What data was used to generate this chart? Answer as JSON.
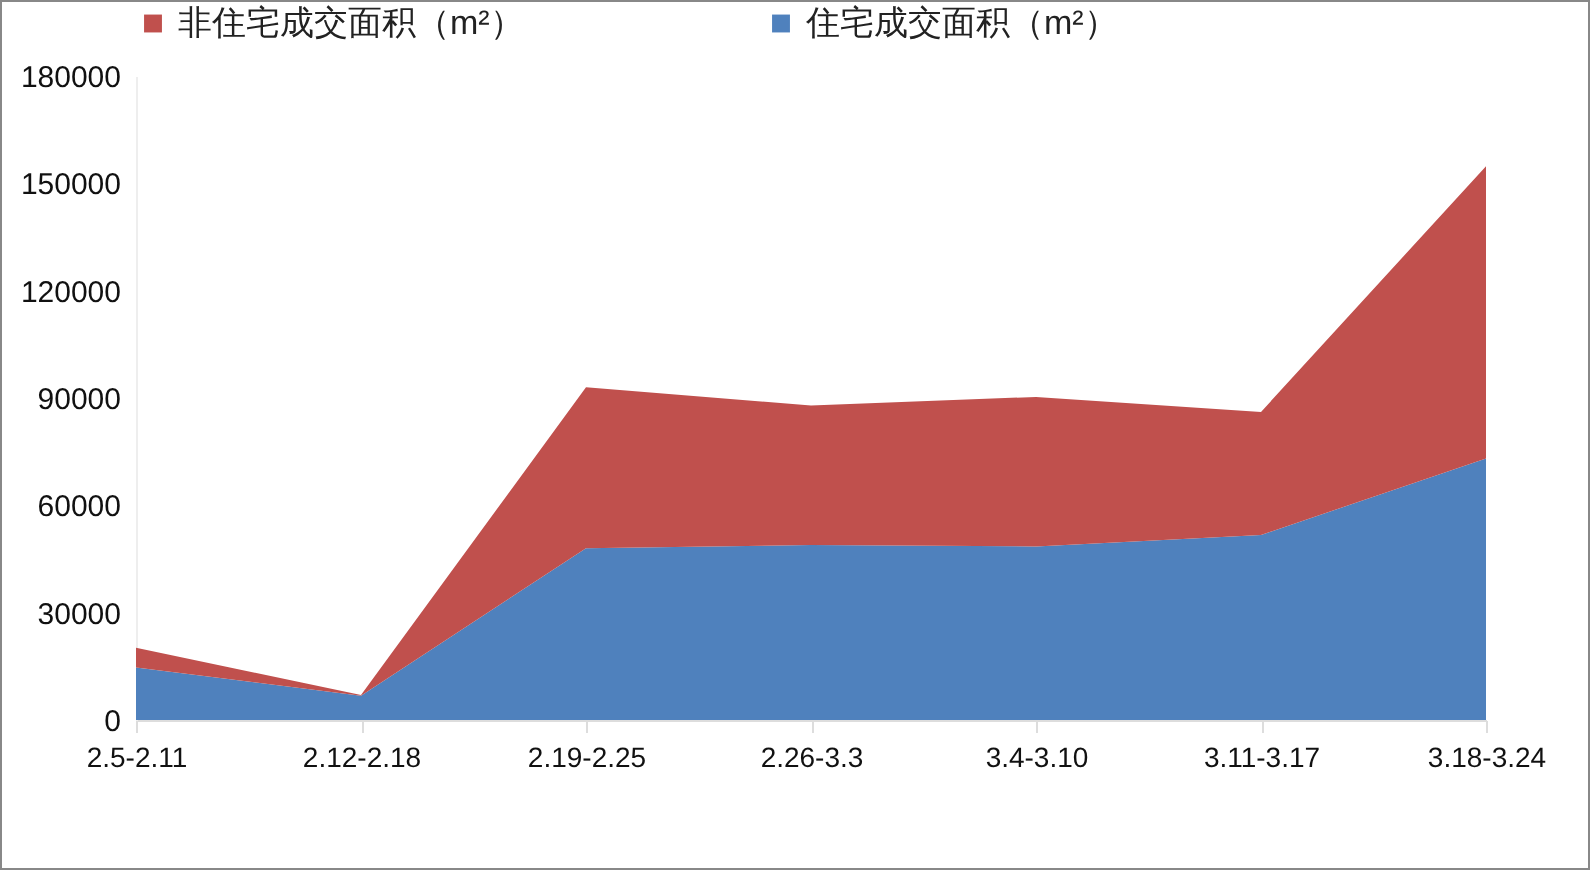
{
  "chart_data": {
    "type": "area",
    "stacked": true,
    "categories": [
      "2.5-2.11",
      "2.12-2.18",
      "2.19-2.25",
      "2.26-3.3",
      "3.4-3.10",
      "3.11-3.17",
      "3.18-3.24"
    ],
    "series": [
      {
        "name": "住宅成交面积（m²）",
        "color": "#4f81bd",
        "values": [
          14700,
          6800,
          48000,
          48900,
          48500,
          51700,
          73100
        ]
      },
      {
        "name": "非住宅成交面积（m²）",
        "color": "#c0504d",
        "values": [
          5500,
          200,
          45000,
          39000,
          41800,
          34400,
          81700
        ]
      }
    ],
    "ylim": [
      0,
      180000
    ],
    "yticks": [
      0,
      30000,
      60000,
      90000,
      120000,
      150000,
      180000
    ],
    "grid": false,
    "legend": "top"
  }
}
